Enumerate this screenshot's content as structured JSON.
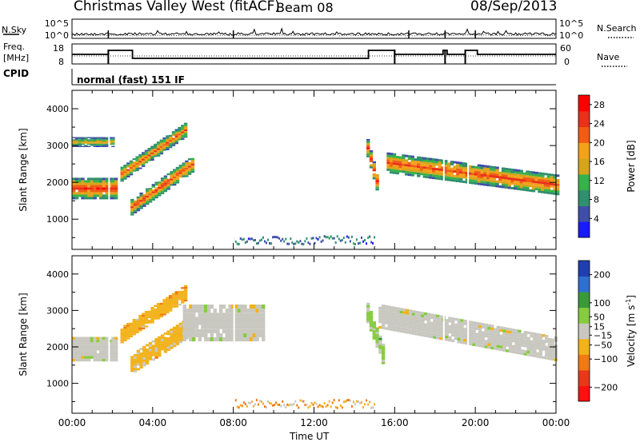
{
  "header": {
    "title_left": "Christmas Valley West (fitACF)",
    "title_beam": "Beam 08",
    "title_date": "08/Sep/2013",
    "cpid_label": "CPID",
    "cpid_text": "normal (fast) 151 IF"
  },
  "status_panels": {
    "nsky_label": "N.Sky",
    "nsearch_label": "N.Search",
    "freq_label_line1": "Freq.",
    "freq_label_line2": "[MHz]",
    "nave_label": "Nave",
    "noise_left_ticks": [
      "10^5",
      "10^0"
    ],
    "noise_right_ticks": [
      "10^5",
      "10^0"
    ],
    "freq_left_ticks": [
      "18",
      "8"
    ],
    "freq_right_ticks": [
      "60",
      "0"
    ]
  },
  "colors": {
    "power_scale": [
      "#1a1aff",
      "#3f4fa8",
      "#2f8f6f",
      "#37b24a",
      "#d6a51a",
      "#f4a11a",
      "#f25c14",
      "#e8301a",
      "#ff0000"
    ],
    "velocity_scale": [
      "#1f3fb0",
      "#2f6fd0",
      "#3a9a3a",
      "#86cc3e",
      "#c8c8c0",
      "#f2b21a",
      "#f07a14",
      "#e8381a",
      "#ff1010"
    ]
  },
  "chart_data": [
    {
      "type": "heatmap",
      "title": "Power",
      "ylabel": "Slant Range [km]",
      "xlabel": "Time UT",
      "x_ticks": [
        "00:00",
        "04:00",
        "08:00",
        "12:00",
        "16:00",
        "20:00",
        "00:00"
      ],
      "y_ticks": [
        1000,
        2000,
        3000,
        4000
      ],
      "ylim": [
        180,
        4500
      ],
      "colorbar_label": "Power [dB]",
      "colorbar_ticks": [
        4,
        8,
        12,
        16,
        20,
        24,
        28
      ],
      "colorbar_range": [
        0,
        30
      ],
      "echo_bands": [
        {
          "t_start": 0.0,
          "t_end": 2.1,
          "range_center": 1800,
          "range_halfwidth": 260,
          "level": 0.85
        },
        {
          "t_start": 0.0,
          "t_end": 2.0,
          "range_center": 3080,
          "range_halfwidth": 120,
          "level": 0.55
        },
        {
          "t_start": 2.9,
          "t_end": 6.0,
          "range_center_start": 1300,
          "range_center_end": 2500,
          "range_halfwidth": 200,
          "level": 0.8
        },
        {
          "t_start": 2.4,
          "t_end": 5.7,
          "range_center_start": 2200,
          "range_center_end": 3450,
          "range_halfwidth": 180,
          "level": 0.75
        },
        {
          "t_start": 14.6,
          "t_end": 15.2,
          "range_center_start": 2900,
          "range_center_end": 1700,
          "range_halfwidth": 220,
          "level": 0.85
        },
        {
          "t_start": 15.6,
          "t_end": 24.0,
          "range_center_start": 2500,
          "range_center_end": 1900,
          "range_halfwidth": 250,
          "level": 0.8
        }
      ]
    },
    {
      "type": "heatmap",
      "title": "Velocity",
      "ylabel": "Slant Range [km]",
      "xlabel": "Time UT",
      "x_ticks": [
        "00:00",
        "04:00",
        "08:00",
        "12:00",
        "16:00",
        "20:00",
        "00:00"
      ],
      "y_ticks": [
        1000,
        2000,
        3000,
        4000
      ],
      "ylim": [
        180,
        4500
      ],
      "colorbar_label": "Velocity [m s^-1]",
      "colorbar_ticks": [
        200,
        100,
        50,
        15,
        -15,
        -50,
        -100,
        -200
      ],
      "colorbar_range": [
        -250,
        250
      ],
      "echo_bands": [
        {
          "t_start": 0.0,
          "t_end": 2.1,
          "range_center": 1900,
          "range_halfwidth": 300,
          "velocity": 0
        },
        {
          "t_start": 2.9,
          "t_end": 6.0,
          "range_center_start": 1500,
          "range_center_end": 2600,
          "range_halfwidth": 250,
          "velocity": -40
        },
        {
          "t_start": 2.4,
          "t_end": 5.7,
          "range_center_start": 2300,
          "range_center_end": 3500,
          "range_halfwidth": 200,
          "velocity": -60
        },
        {
          "t_start": 5.5,
          "t_end": 9.5,
          "range_center": 2600,
          "range_halfwidth": 450,
          "velocity": 0
        },
        {
          "t_start": 14.6,
          "t_end": 15.4,
          "range_center_start": 2900,
          "range_center_end": 1700,
          "range_halfwidth": 250,
          "velocity": 40
        },
        {
          "t_start": 15.2,
          "t_end": 24.0,
          "range_center_start": 2800,
          "range_center_end": 1900,
          "range_halfwidth": 300,
          "velocity": 0
        }
      ]
    }
  ]
}
